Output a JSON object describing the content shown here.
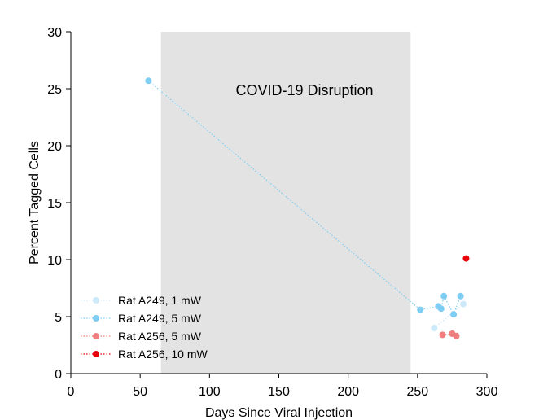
{
  "chart_data": {
    "type": "scatter",
    "xlabel": "Days Since Viral Injection",
    "ylabel": "Percent Tagged Cells",
    "xlim": [
      0,
      300
    ],
    "ylim": [
      0,
      30
    ],
    "xticks": [
      0,
      50,
      100,
      150,
      200,
      250,
      300
    ],
    "yticks": [
      0,
      5,
      10,
      15,
      20,
      25,
      30
    ],
    "shaded_region": {
      "x": [
        65,
        245
      ],
      "label": "COVID-19 Disruption",
      "color": "#e3e3e3"
    },
    "legend_position": "lower-left",
    "series": [
      {
        "name": "Rat A249, 1 mW",
        "color": "#cdeafb",
        "linestyle": "dotted",
        "points": [
          [
            262,
            4.0
          ],
          [
            283,
            6.1
          ]
        ]
      },
      {
        "name": "Rat A249, 5 mW",
        "color": "#7fcdf3",
        "linestyle": "dotted",
        "points": [
          [
            56,
            25.7
          ],
          [
            252,
            5.6
          ],
          [
            265,
            5.9
          ],
          [
            267,
            5.7
          ],
          [
            269,
            6.8
          ],
          [
            276,
            5.2
          ],
          [
            281,
            6.8
          ]
        ]
      },
      {
        "name": "Rat A256, 5 mW",
        "color": "#f08080",
        "linestyle": "dotted",
        "points": [
          [
            268,
            3.4
          ],
          [
            275,
            3.5
          ],
          [
            278,
            3.3
          ]
        ]
      },
      {
        "name": "Rat A256, 10 mW",
        "color": "#e8000b",
        "linestyle": "dotted",
        "points": [
          [
            285,
            10.1
          ]
        ]
      }
    ]
  }
}
